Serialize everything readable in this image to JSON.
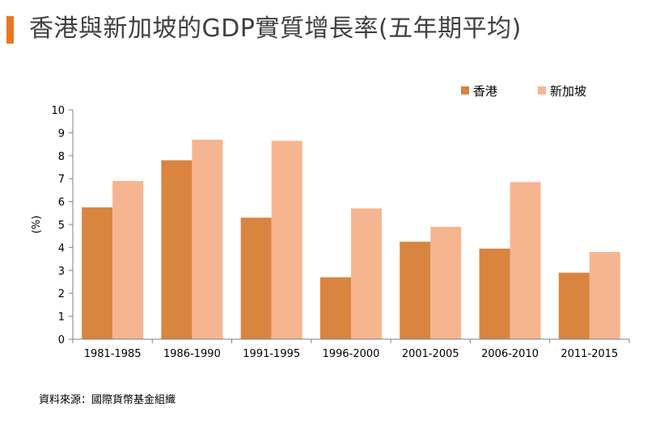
{
  "title": "香港與新加坡的GDP實質增長率(五年期平均)",
  "source": "資料來源：國際貨幣基金組織",
  "colors": {
    "accent": "#e87722",
    "hk": "#d9843f",
    "sg": "#f6b591"
  },
  "chart_data": {
    "type": "bar",
    "title": "香港與新加坡的GDP實質增長率(五年期平均)",
    "xlabel": "",
    "ylabel": "(%)",
    "ylim": [
      0,
      10
    ],
    "yticks": [
      "0",
      "1",
      "2",
      "3",
      "4",
      "5",
      "6",
      "7",
      "8",
      "9",
      "10"
    ],
    "legend_position": "top-right",
    "categories": [
      "1981-1985",
      "1986-1990",
      "1991-1995",
      "1996-2000",
      "2001-2005",
      "2006-2010",
      "2011-2015"
    ],
    "series": [
      {
        "name": "香港",
        "color": "#d9843f",
        "values": [
          5.75,
          7.8,
          5.3,
          2.7,
          4.25,
          3.95,
          2.9
        ]
      },
      {
        "name": "新加坡",
        "color": "#f6b591",
        "values": [
          6.9,
          8.7,
          8.65,
          5.7,
          4.9,
          6.85,
          3.8
        ]
      }
    ]
  }
}
